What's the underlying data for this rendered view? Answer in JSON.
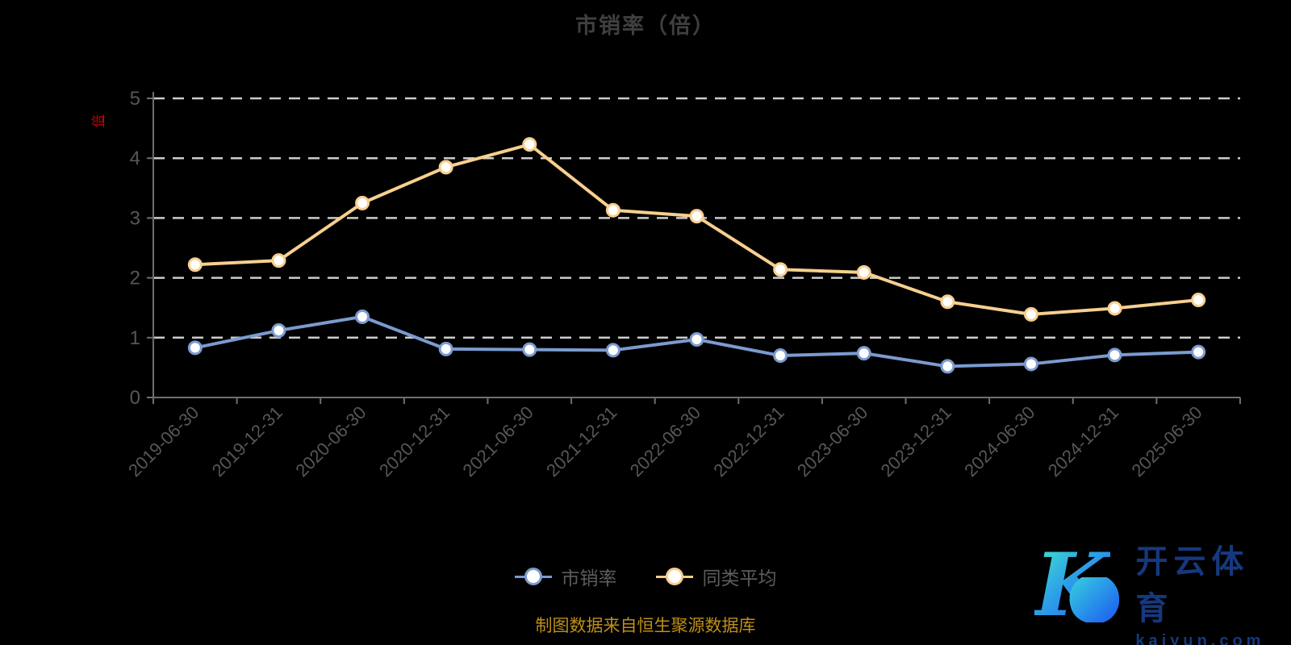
{
  "title": "市销率（倍）",
  "y_axis_name": "倍",
  "legend": {
    "items": [
      {
        "label": "市销率",
        "color": "#7b9bd0"
      },
      {
        "label": "同类平均",
        "color": "#f7cf8e"
      }
    ]
  },
  "footer": {
    "source_text": "制图数据来自恒生聚源数据库"
  },
  "watermark": {
    "logo_letter": "K",
    "soccer_ball": "⚽",
    "brand_cn": "开云体育",
    "brand_url": "kaiyun.com"
  },
  "colors": {
    "background": "#000000",
    "title": "#3f3f3f",
    "axis_line": "#6f6f6f",
    "tick_label": "#565656",
    "gridline": "#cccccc",
    "y_axis_name": "#c40000",
    "footer_text": "#bd8f16",
    "watermark_text": "#16387f",
    "logo_gradient_start": "#3fe0cf",
    "logo_gradient_end": "#1e66f0"
  },
  "chart_data": {
    "type": "line",
    "title": "市销率（倍）",
    "categories": [
      "2019-06-30",
      "2019-12-31",
      "2020-06-30",
      "2020-12-31",
      "2021-06-30",
      "2021-12-31",
      "2022-06-30",
      "2022-12-31",
      "2023-06-30",
      "2023-12-31",
      "2024-06-30",
      "2024-12-31",
      "2025-06-30"
    ],
    "series": [
      {
        "name": "市销率",
        "color": "#7b9bd0",
        "marker_fill": "#ffffff",
        "values": [
          0.83,
          1.12,
          1.35,
          0.81,
          0.8,
          0.79,
          0.97,
          0.7,
          0.74,
          0.52,
          0.56,
          0.71,
          0.76
        ]
      },
      {
        "name": "同类平均",
        "color": "#f7cf8e",
        "marker_fill": "#ffffff",
        "values": [
          2.22,
          2.29,
          3.25,
          3.85,
          4.23,
          3.13,
          3.03,
          2.14,
          2.09,
          1.6,
          1.39,
          1.49,
          1.63
        ]
      }
    ],
    "xlabel": "",
    "ylabel": "倍",
    "ylim": [
      0,
      5
    ],
    "yticks": [
      0,
      1,
      2,
      3,
      4,
      5
    ],
    "grid": "horizontal-dashed",
    "legend_position": "bottom"
  }
}
